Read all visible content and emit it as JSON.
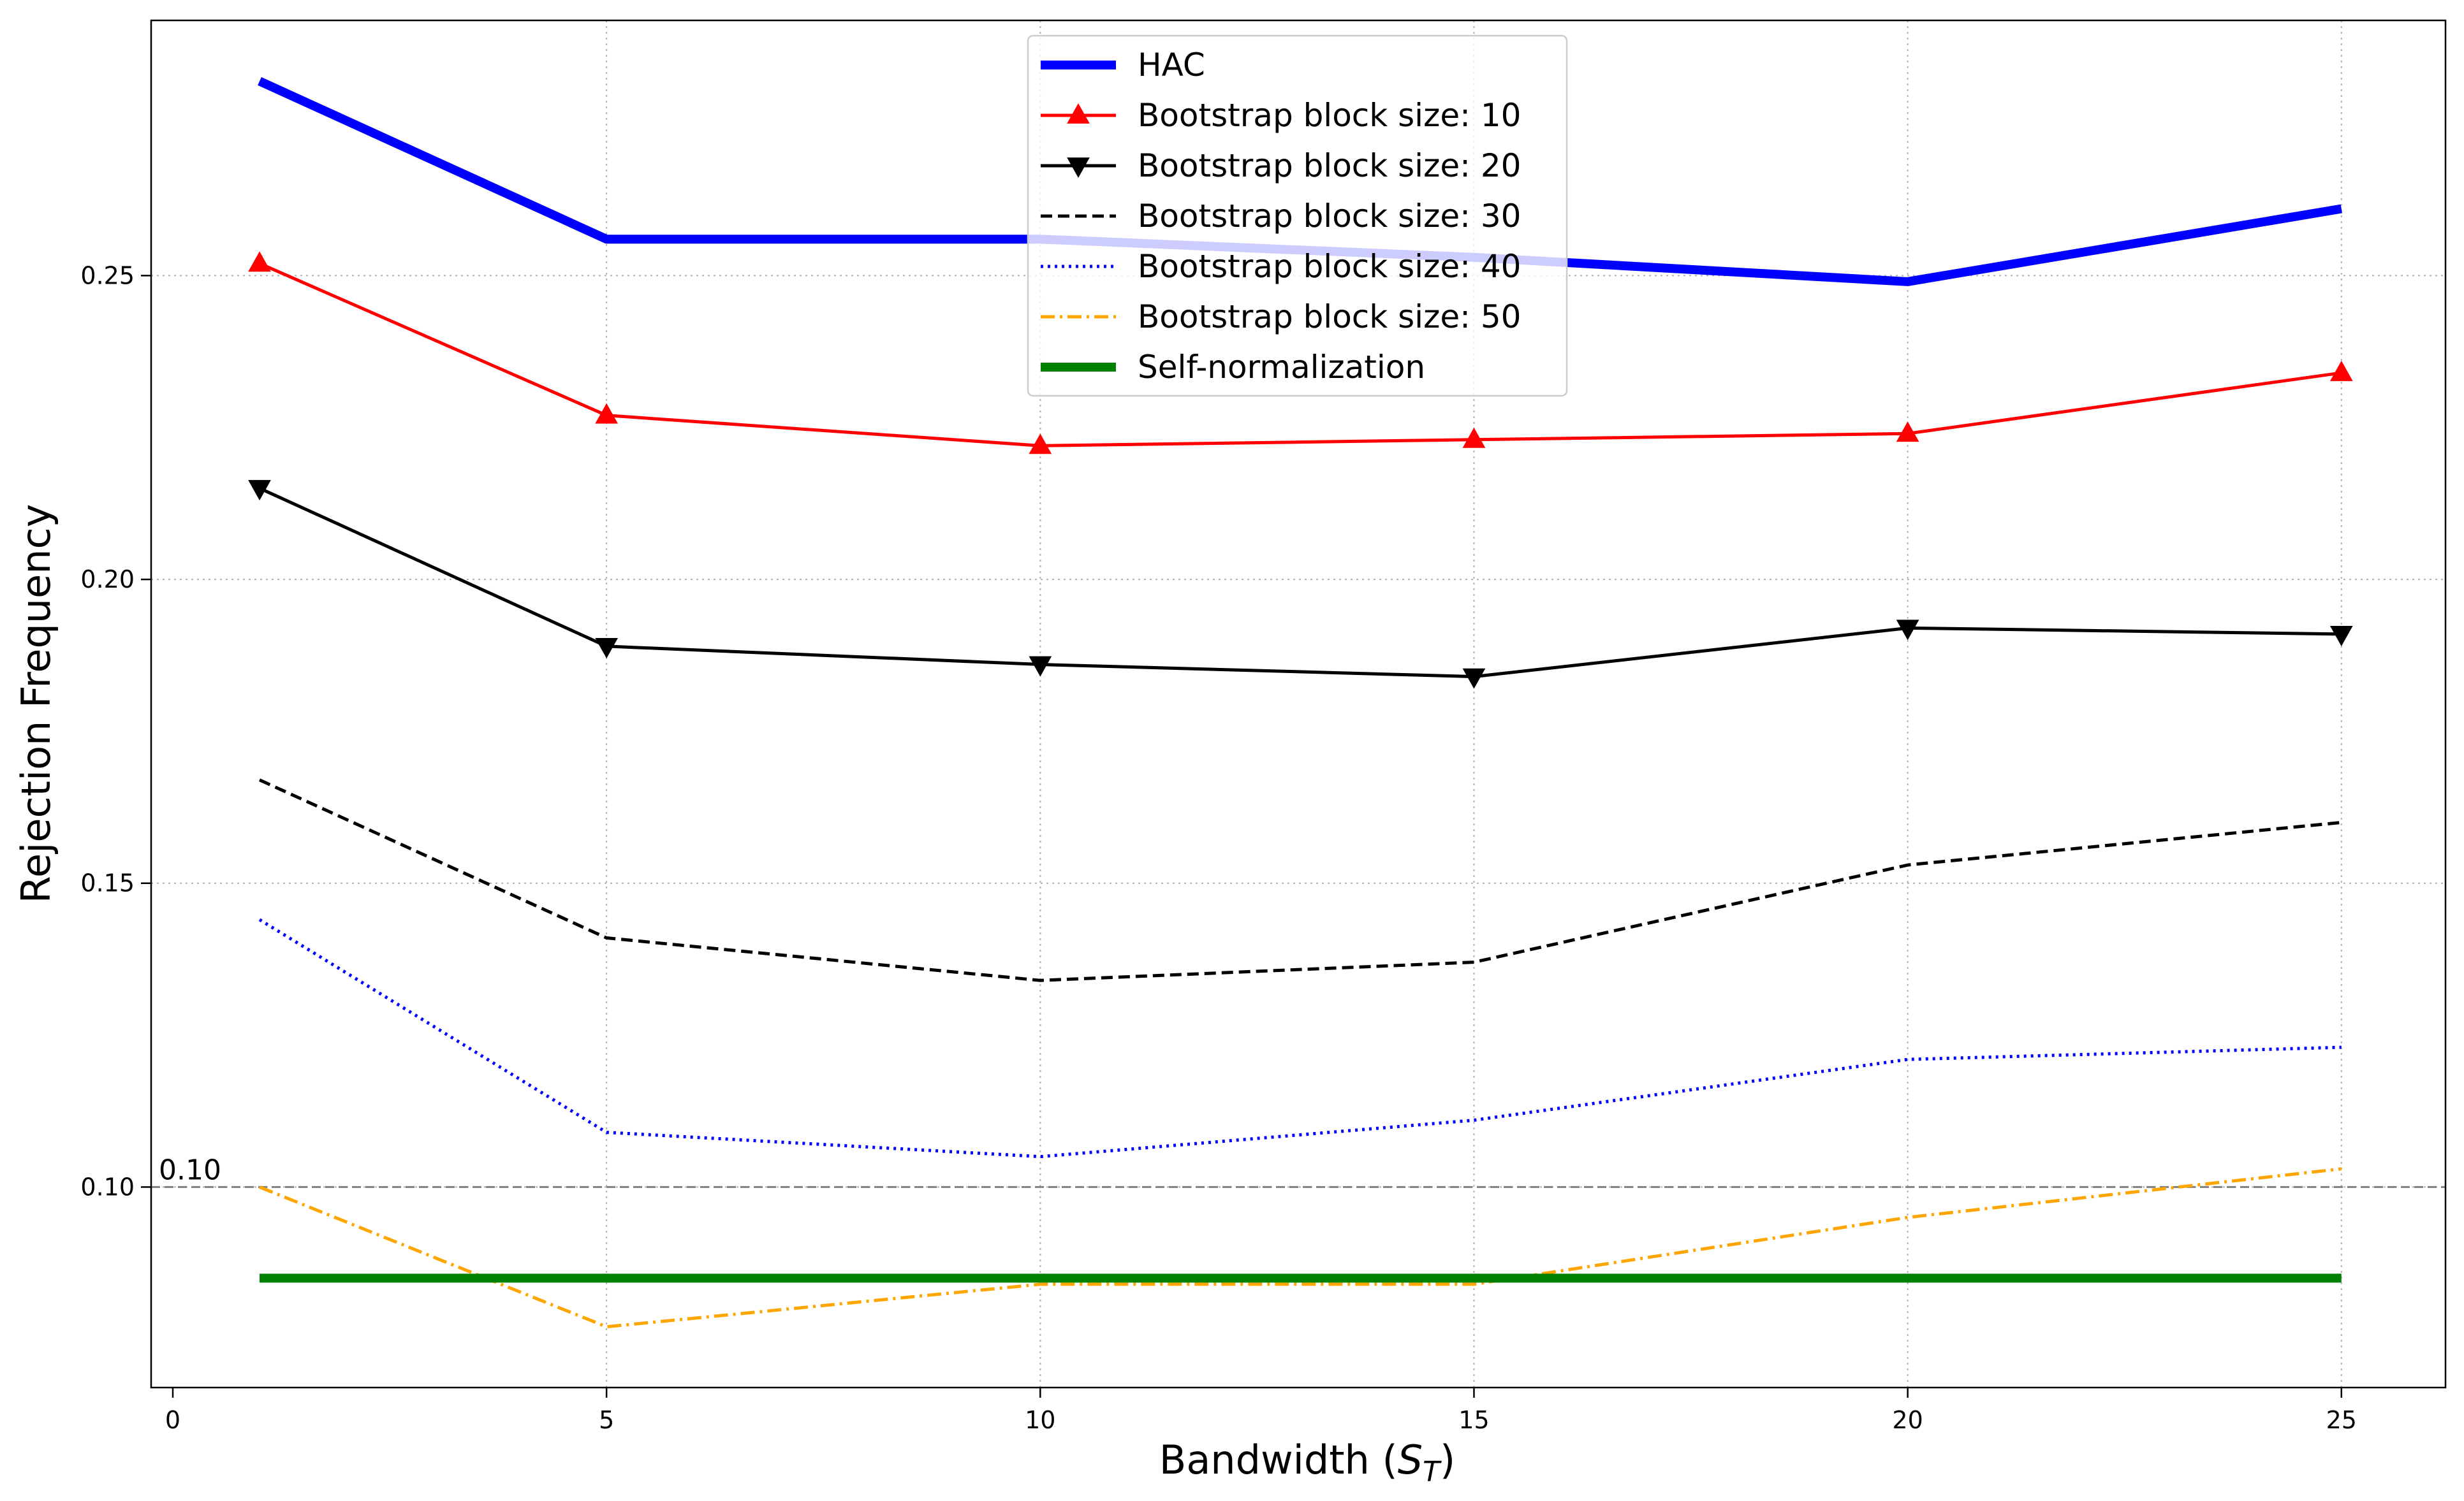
{
  "chart_data": {
    "type": "line",
    "title": "",
    "xlabel": "Bandwidth (",
    "xlabel_symbol": "S",
    "xlabel_subscript": "T",
    "xlabel_close": ")",
    "ylabel": "Rejection Frequency",
    "x": [
      1,
      5,
      10,
      15,
      20,
      25
    ],
    "xlim": [
      -0.25,
      26.2
    ],
    "ylim": [
      0.067,
      0.292
    ],
    "xticks": [
      0,
      5,
      10,
      15,
      20,
      25
    ],
    "xtick_labels": [
      "0",
      "5",
      "10",
      "15",
      "20",
      "25"
    ],
    "yticks": [
      0.1,
      0.15,
      0.2,
      0.25
    ],
    "ytick_labels": [
      "0.10",
      "0.15",
      "0.20",
      "0.25"
    ],
    "grid": true,
    "legend_position": "top-center",
    "reference_line": {
      "y": 0.1,
      "label": "0.10",
      "color": "#808080"
    },
    "series": [
      {
        "name": "HAC",
        "values": [
          0.282,
          0.256,
          0.256,
          0.253,
          0.249,
          0.261
        ],
        "color": "#0000ff",
        "style": "solid",
        "width": "thick",
        "marker": "none"
      },
      {
        "name": "Bootstrap block size: 10",
        "values": [
          0.252,
          0.227,
          0.222,
          0.223,
          0.224,
          0.234
        ],
        "color": "#ff0000",
        "style": "solid",
        "width": "normal",
        "marker": "triangle-up"
      },
      {
        "name": "Bootstrap block size: 20",
        "values": [
          0.215,
          0.189,
          0.186,
          0.184,
          0.192,
          0.191
        ],
        "color": "#000000",
        "style": "solid",
        "width": "normal",
        "marker": "triangle-down"
      },
      {
        "name": "Bootstrap block size: 30",
        "values": [
          0.167,
          0.141,
          0.134,
          0.137,
          0.153,
          0.16
        ],
        "color": "#000000",
        "style": "dashed",
        "width": "normal",
        "marker": "none"
      },
      {
        "name": "Bootstrap block size: 40",
        "values": [
          0.144,
          0.109,
          0.105,
          0.111,
          0.121,
          0.123
        ],
        "color": "#0000ff",
        "style": "dotted",
        "width": "normal",
        "marker": "none"
      },
      {
        "name": "Bootstrap block size: 50",
        "values": [
          0.1,
          0.077,
          0.084,
          0.084,
          0.095,
          0.103
        ],
        "color": "#ffa500",
        "style": "dashdot",
        "width": "normal",
        "marker": "none"
      },
      {
        "name": "Self-normalization",
        "values": [
          0.085,
          0.085,
          0.085,
          0.085,
          0.085,
          0.085
        ],
        "color": "#008000",
        "style": "solid",
        "width": "thick",
        "marker": "none"
      }
    ]
  }
}
